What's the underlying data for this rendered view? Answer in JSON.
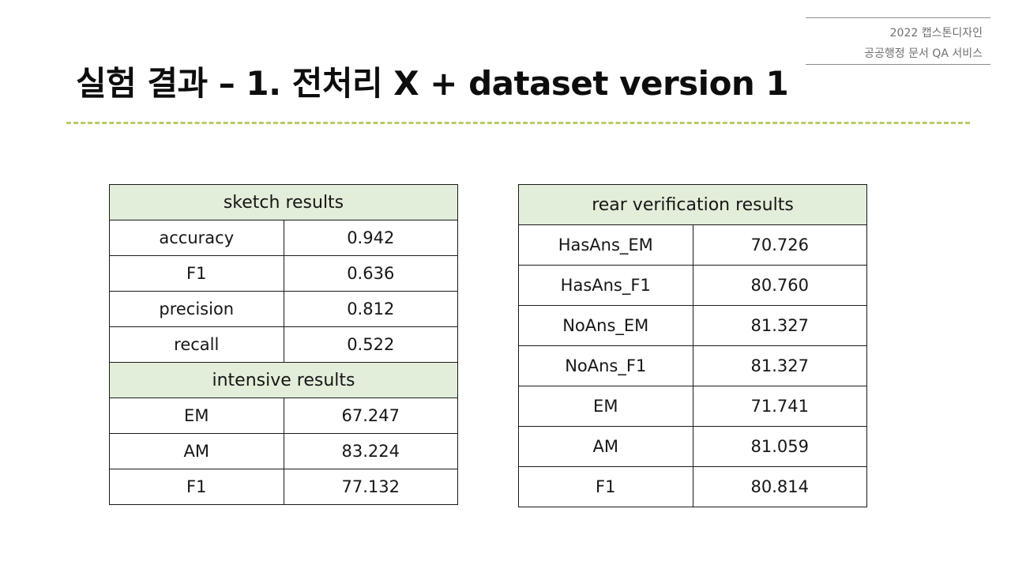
{
  "header": {
    "line1": "2022 캡스톤디자인",
    "line2": "공공행정 문서 QA 서비스"
  },
  "title": "실험 결과 – 1. 전처리 X + dataset version 1",
  "left_table": {
    "sketch": {
      "heading": "sketch results",
      "rows": [
        {
          "label": "accuracy",
          "value": "0.942"
        },
        {
          "label": "F1",
          "value": "0.636"
        },
        {
          "label": "precision",
          "value": "0.812"
        },
        {
          "label": "recall",
          "value": "0.522"
        }
      ]
    },
    "intensive": {
      "heading": "intensive results",
      "rows": [
        {
          "label": "EM",
          "value": "67.247"
        },
        {
          "label": "AM",
          "value": "83.224"
        },
        {
          "label": "F1",
          "value": "77.132"
        }
      ]
    }
  },
  "right_table": {
    "heading": "rear verification results",
    "rows": [
      {
        "label": "HasAns_EM",
        "value": "70.726"
      },
      {
        "label": "HasAns_F1",
        "value": "80.760"
      },
      {
        "label": "NoAns_EM",
        "value": "81.327"
      },
      {
        "label": "NoAns_F1",
        "value": "81.327"
      },
      {
        "label": "EM",
        "value": "71.741"
      },
      {
        "label": "AM",
        "value": "81.059"
      },
      {
        "label": "F1",
        "value": "80.814"
      }
    ]
  },
  "colors": {
    "section_header_bg": "#e2eed9",
    "divider": "#b6cc6a",
    "header_text": "#6f6f6f"
  }
}
